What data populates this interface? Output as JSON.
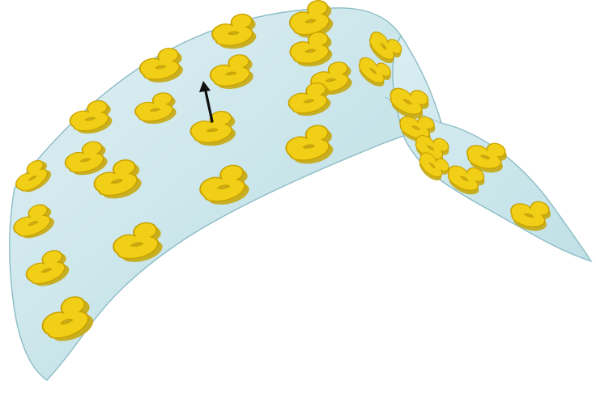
{
  "scene": {
    "surface_color": "#c7e3e8",
    "surface_edge_color": "#8bb8c2",
    "token_color": "#f1cf16",
    "token_shadow_color": "#c7a80e",
    "arrow_color": "#111111"
  }
}
